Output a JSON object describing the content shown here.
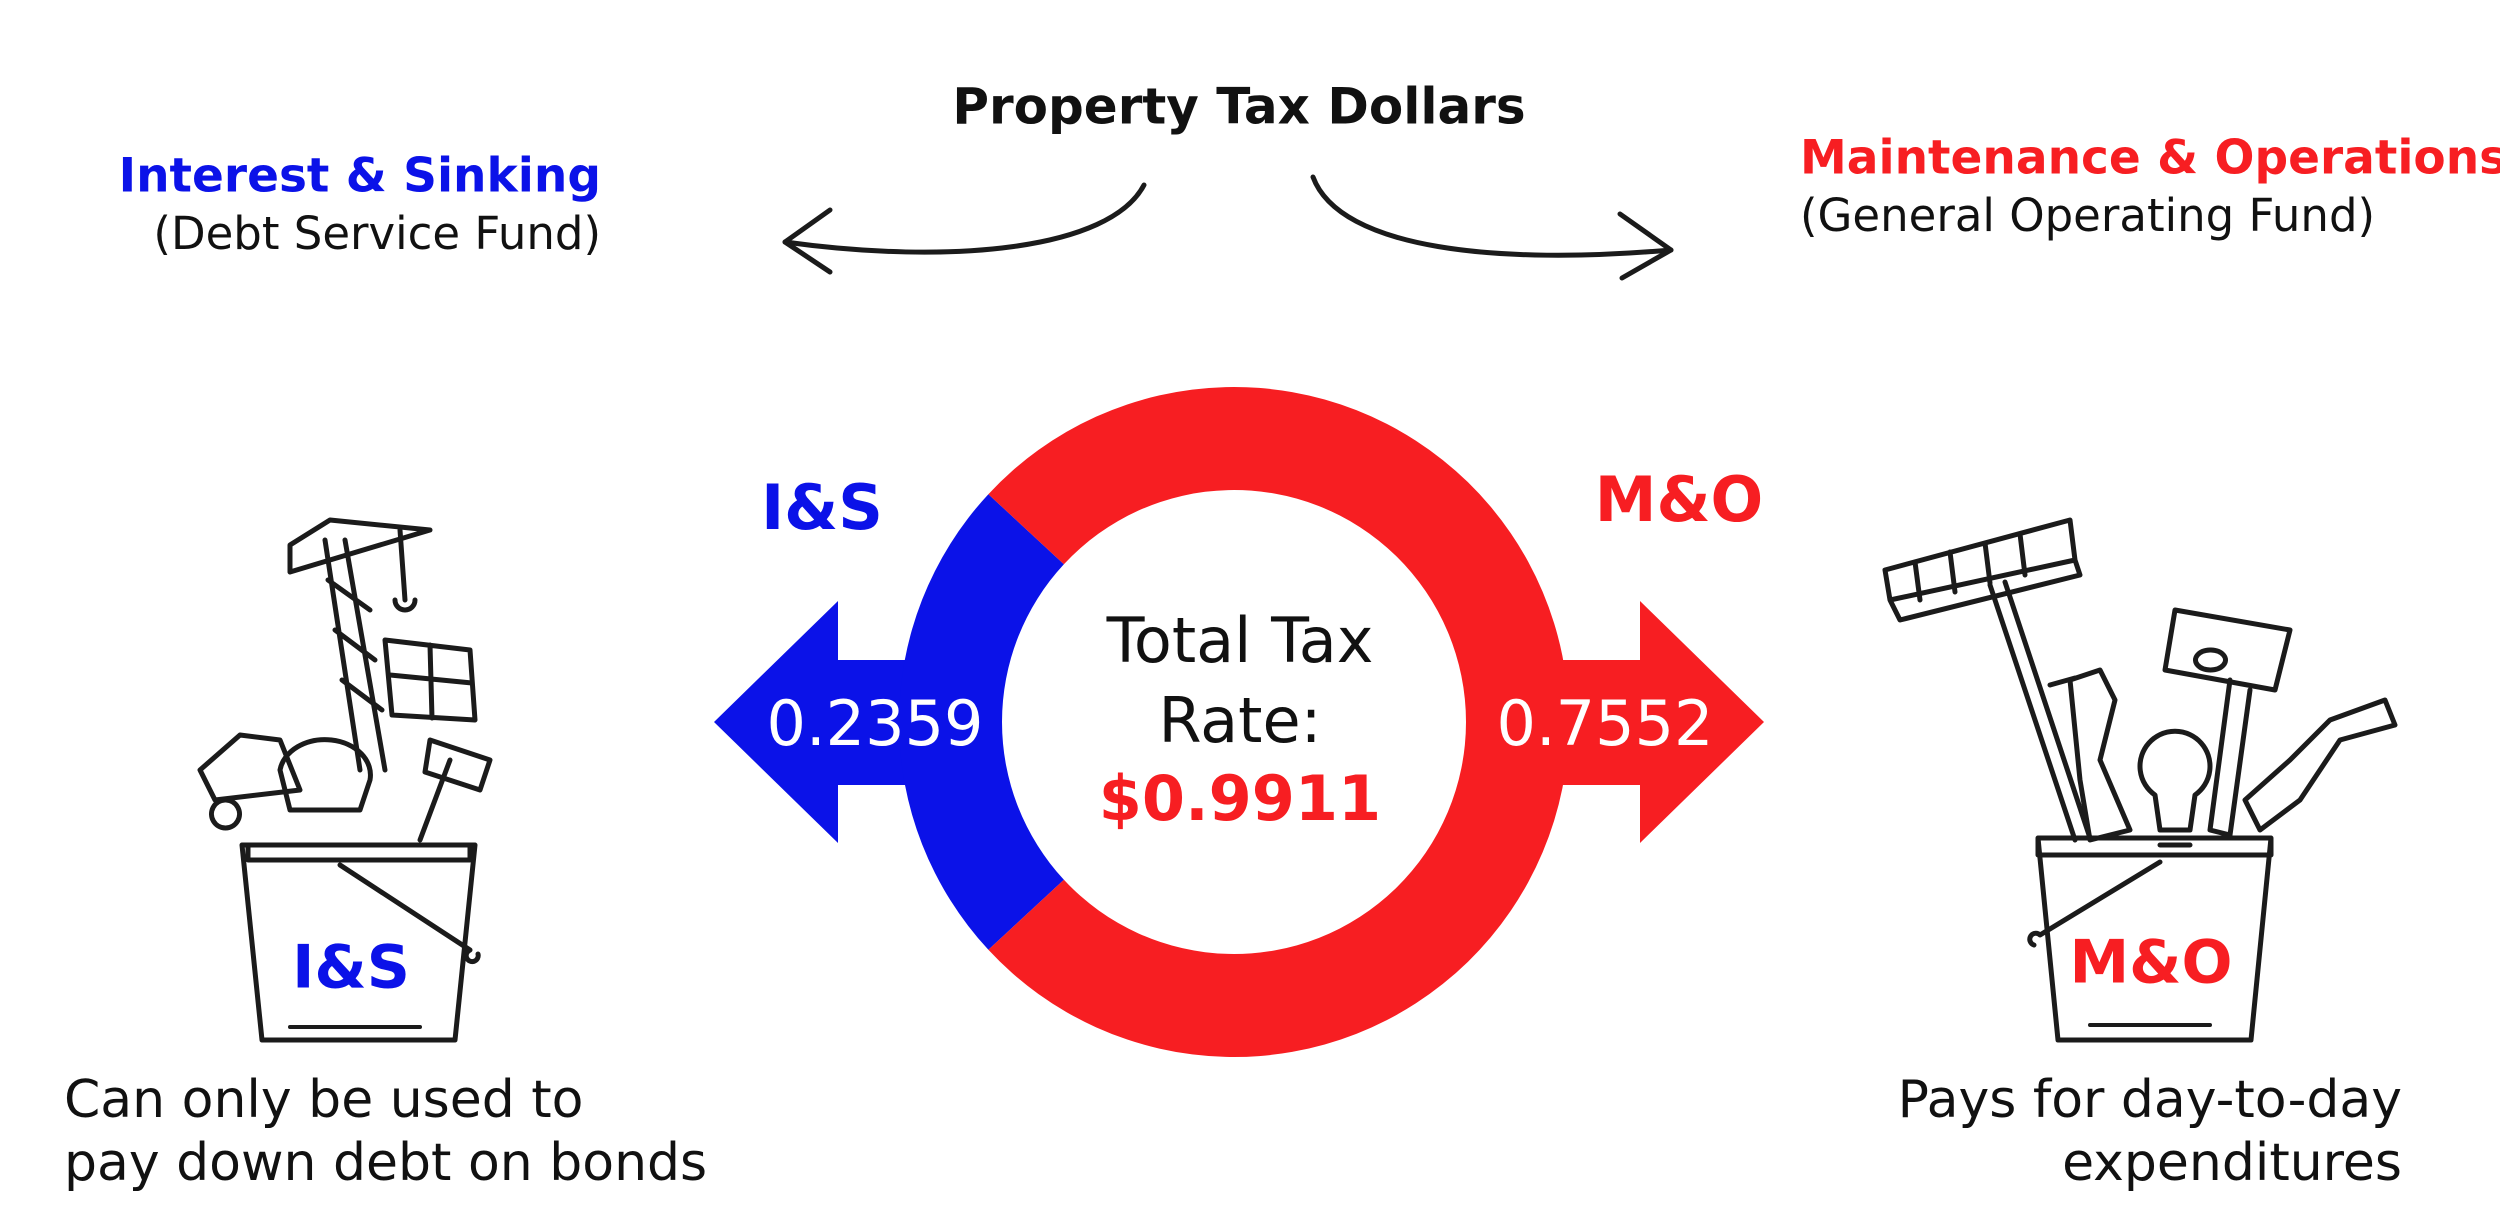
{
  "header": {
    "title": "Property Tax Dollars",
    "left_heading": "Interest & Sinking",
    "left_subheading": "(Debt Service Fund)",
    "right_heading": "Maintenance & Operations",
    "right_subheading": "(General Operating Fund)"
  },
  "chart_data": {
    "type": "donut",
    "categories": [
      "I&S",
      "M&O"
    ],
    "values": [
      0.2359,
      0.7552
    ],
    "colors": [
      "#0b12e8",
      "#f71e22"
    ],
    "center_label": [
      "Total Tax",
      "Rate:"
    ],
    "center_value": "$0.9911"
  },
  "left_panel": {
    "bucket_label": "I&S",
    "description": [
      "Can only be used to",
      "pay down debt on bonds"
    ]
  },
  "right_panel": {
    "bucket_label": "M&O",
    "description": [
      "Pays for day-to-day",
      "expenditures"
    ]
  }
}
